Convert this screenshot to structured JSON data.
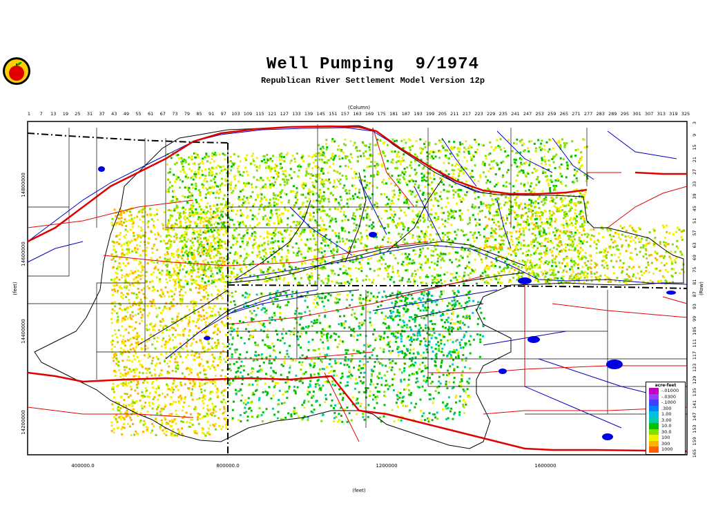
{
  "title": "Well Pumping  9/1974",
  "subtitle": "Republican River Settlement Model Version 12p",
  "axes": {
    "top_label": "(Column)",
    "right_label": "(Row)",
    "bottom_label": "(feet)",
    "left_label": "(feet)",
    "column_ticks": [
      "1",
      "7",
      "13",
      "19",
      "25",
      "31",
      "37",
      "43",
      "49",
      "55",
      "61",
      "67",
      "73",
      "79",
      "85",
      "91",
      "97",
      "103",
      "109",
      "115",
      "121",
      "127",
      "133",
      "139",
      "145",
      "151",
      "157",
      "163",
      "169",
      "175",
      "181",
      "187",
      "193",
      "199",
      "205",
      "211",
      "217",
      "223",
      "229",
      "235",
      "241",
      "247",
      "253",
      "259",
      "265",
      "271",
      "277",
      "283",
      "289",
      "295",
      "301",
      "307",
      "313",
      "319",
      "325"
    ],
    "row_ticks": [
      "3",
      "9",
      "15",
      "21",
      "27",
      "33",
      "39",
      "45",
      "51",
      "57",
      "63",
      "69",
      "75",
      "81",
      "87",
      "93",
      "99",
      "105",
      "111",
      "117",
      "123",
      "129",
      "135",
      "141",
      "147",
      "153",
      "159",
      "165"
    ],
    "x_ticks": [
      "400000.0",
      "800000.0",
      "1200000",
      "1600000"
    ],
    "y_ticks": [
      "14800000",
      "14600000",
      "14400000",
      "14200000"
    ]
  },
  "legend": {
    "title": "acre-feet",
    "items": [
      {
        "label": "-.01000",
        "color": "#c000c0"
      },
      {
        "label": "-.0300",
        "color": "#9040ff"
      },
      {
        "label": "-.1000",
        "color": "#4040ff"
      },
      {
        "label": ".300",
        "color": "#0080ff"
      },
      {
        "label": "1.00",
        "color": "#00c0e0"
      },
      {
        "label": "3.00",
        "color": "#00d0a0"
      },
      {
        "label": "10.0",
        "color": "#00c000"
      },
      {
        "label": "30.0",
        "color": "#80e000"
      },
      {
        "label": "100",
        "color": "#f0f000"
      },
      {
        "label": "300",
        "color": "#ffb000"
      },
      {
        "label": "1000",
        "color": "#ff6000"
      }
    ]
  },
  "colors": {
    "rivers": "#0000c0",
    "roads": "#e00000",
    "highways": "#e00000",
    "counties": "#000000",
    "model_boundary": "#000000"
  }
}
